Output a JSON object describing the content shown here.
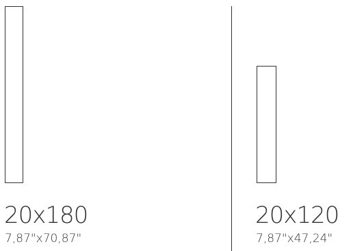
{
  "products": [
    {
      "size_cm": "20x180",
      "size_in": "7,87\"x70,87\""
    },
    {
      "size_cm": "20x120",
      "size_in": "7,87\"x47,24\""
    }
  ],
  "colors": {
    "line": "#333333",
    "background": "#ffffff"
  }
}
